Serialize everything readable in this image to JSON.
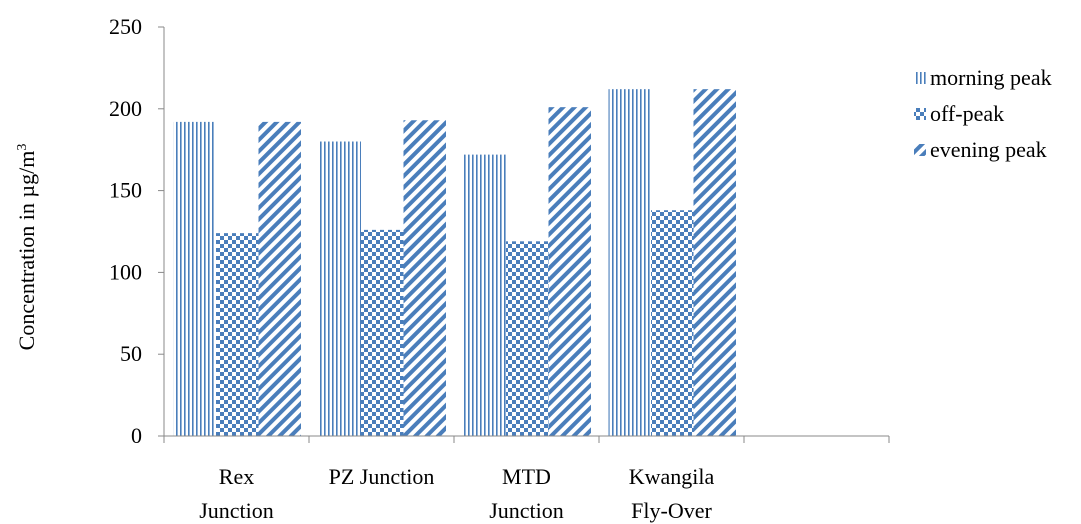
{
  "chart_data": {
    "type": "bar",
    "title": "",
    "xlabel": "",
    "ylabel": {
      "text": "Concentration in µg/m",
      "superscript": "3"
    },
    "ylim": [
      0,
      250
    ],
    "yticks": [
      0,
      50,
      100,
      150,
      200,
      250
    ],
    "grid": false,
    "legend_position": "right",
    "categories": [
      [
        "Rex",
        "Junction"
      ],
      [
        "PZ Junction"
      ],
      [
        "MTD",
        "Junction"
      ],
      [
        "Kwangila",
        "Fly-Over"
      ]
    ],
    "extra_empty_category_slots": 1,
    "series": [
      {
        "name": "morning peak",
        "pattern": "vertical-lines",
        "color": "#4a7ebb",
        "values": [
          192,
          180,
          172,
          212
        ]
      },
      {
        "name": "off-peak",
        "pattern": "checker",
        "color": "#4a7ebb",
        "values": [
          124,
          126,
          119,
          138
        ]
      },
      {
        "name": "evening peak",
        "pattern": "diagonal-lines",
        "color": "#4a7ebb",
        "values": [
          192,
          193,
          201,
          212
        ]
      }
    ]
  }
}
